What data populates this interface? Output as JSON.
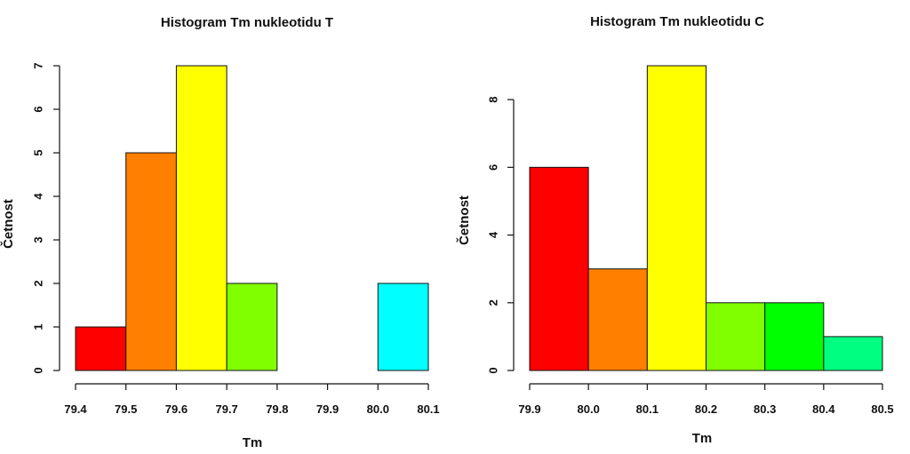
{
  "chart_data": [
    {
      "type": "bar",
      "title": "Histogram Tm nukleotidu T",
      "xlabel": "Tm",
      "ylabel": "Četnost",
      "bin_edges": [
        79.4,
        79.5,
        79.6,
        79.7,
        79.8,
        79.9,
        80.0,
        80.1
      ],
      "values": [
        1,
        5,
        7,
        2,
        0,
        0,
        2
      ],
      "colors": [
        "#ff0000",
        "#ff8000",
        "#ffff00",
        "#80ff00",
        "#00ff00",
        "#00ff80",
        "#00ffff"
      ],
      "xlim": [
        79.4,
        80.1
      ],
      "ylim": [
        0,
        7
      ],
      "x_ticks": [
        "79.4",
        "79.5",
        "79.6",
        "79.7",
        "79.8",
        "79.9",
        "80.0",
        "80.1"
      ],
      "y_ticks": [
        "0",
        "1",
        "2",
        "3",
        "4",
        "5",
        "6",
        "7"
      ],
      "grid": false
    },
    {
      "type": "bar",
      "title": "Histogram Tm  nukleotidu C",
      "xlabel": "Tm",
      "ylabel": "Četnost",
      "bin_edges": [
        79.9,
        80.0,
        80.1,
        80.2,
        80.3,
        80.4,
        80.5
      ],
      "values": [
        6,
        3,
        9,
        2,
        2,
        1
      ],
      "colors": [
        "#ff0000",
        "#ff8000",
        "#ffff00",
        "#80ff00",
        "#00ff00",
        "#00ff80"
      ],
      "xlim": [
        79.9,
        80.5
      ],
      "ylim": [
        0,
        9
      ],
      "x_ticks": [
        "79.9",
        "80.0",
        "80.1",
        "80.2",
        "80.3",
        "80.4",
        "80.5"
      ],
      "y_ticks": [
        "0",
        "2",
        "4",
        "6",
        "8"
      ],
      "grid": false
    }
  ]
}
